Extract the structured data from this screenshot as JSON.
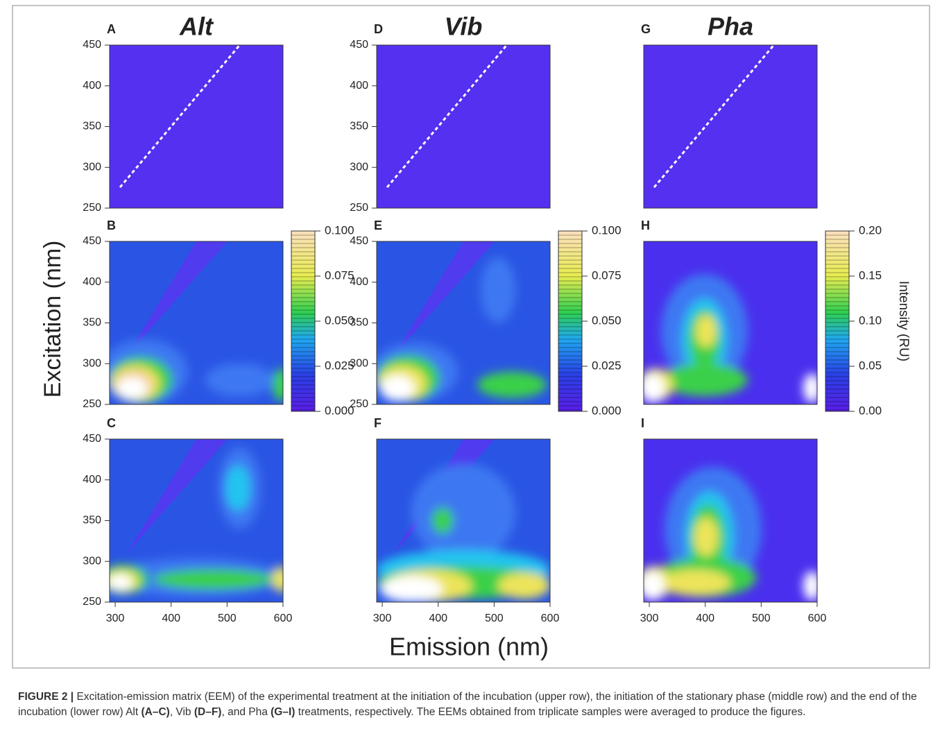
{
  "chart_data": [
    {
      "type": "contour",
      "label": "A",
      "title": "Alt",
      "xlim": [
        290,
        600
      ],
      "ylim": [
        250,
        450
      ],
      "yticks": [
        250,
        300,
        350,
        400,
        450
      ]
    },
    {
      "type": "contour",
      "label": "B",
      "xlim": [
        290,
        600
      ],
      "ylim": [
        250,
        450
      ],
      "yticks": [
        250,
        300,
        350,
        400,
        450
      ],
      "colorbar": {
        "lim": [
          0,
          0.1
        ],
        "ticks": [
          {
            "value": 0,
            "label": "0.000"
          },
          {
            "value": 0.025,
            "label": "0.025"
          },
          {
            "value": 0.05,
            "label": "0.050"
          },
          {
            "value": 0.075,
            "label": "0.075"
          },
          {
            "value": 0.1,
            "label": "0.100"
          }
        ]
      }
    },
    {
      "type": "contour",
      "label": "C",
      "xlim": [
        290,
        600
      ],
      "ylim": [
        250,
        450
      ],
      "yticks": [
        250,
        300,
        350,
        400,
        450
      ],
      "xticks": [
        300,
        400,
        500,
        600
      ]
    },
    {
      "type": "contour",
      "label": "D",
      "title": "Vib",
      "xlim": [
        290,
        600
      ],
      "ylim": [
        250,
        450
      ],
      "yticks": [
        250,
        300,
        350,
        400,
        450
      ]
    },
    {
      "type": "contour",
      "label": "E",
      "xlim": [
        290,
        600
      ],
      "ylim": [
        250,
        450
      ],
      "yticks": [
        250,
        300,
        350,
        400,
        450
      ],
      "colorbar": {
        "lim": [
          0,
          0.1
        ],
        "ticks": [
          {
            "value": 0,
            "label": "0.000"
          },
          {
            "value": 0.025,
            "label": "0.025"
          },
          {
            "value": 0.05,
            "label": "0.050"
          },
          {
            "value": 0.075,
            "label": "0.075"
          },
          {
            "value": 0.1,
            "label": "0.100"
          }
        ]
      }
    },
    {
      "type": "contour",
      "label": "F",
      "xlim": [
        290,
        600
      ],
      "ylim": [
        250,
        450
      ],
      "xticks": [
        300,
        400,
        500,
        600
      ]
    },
    {
      "type": "contour",
      "label": "G",
      "title": "Pha",
      "xlim": [
        290,
        600
      ],
      "ylim": [
        250,
        450
      ]
    },
    {
      "type": "contour",
      "label": "H",
      "xlim": [
        290,
        600
      ],
      "ylim": [
        250,
        450
      ],
      "colorbar": {
        "lim": [
          0,
          0.2
        ],
        "ticks": [
          {
            "value": 0,
            "label": "0.00"
          },
          {
            "value": 0.05,
            "label": "0.05"
          },
          {
            "value": 0.1,
            "label": "0.10"
          },
          {
            "value": 0.15,
            "label": "0.15"
          },
          {
            "value": 0.2,
            "label": "0.20"
          }
        ],
        "label": "Intensity (RU)"
      }
    },
    {
      "type": "contour",
      "label": "I",
      "xlim": [
        290,
        600
      ],
      "ylim": [
        250,
        450
      ],
      "xticks": [
        300,
        400,
        500,
        600
      ]
    }
  ],
  "figure": {
    "ylabel": "Excitation (nm)",
    "xlabel": "Emission (nm)"
  },
  "caption": [
    {
      "text": "FIGURE 2 |",
      "bold": true
    },
    {
      "text": " Excitation-emission matrix (EEM) of the experimental treatment at the initiation of the incubation (upper row), the initiation of the stationary phase (middle row) and the end of the incubation (lower row) Alt "
    },
    {
      "text": "(A–C)",
      "bold": true
    },
    {
      "text": ", Vib "
    },
    {
      "text": "(D–F)",
      "bold": true
    },
    {
      "text": ", and Pha "
    },
    {
      "text": "(G–I)",
      "bold": true
    },
    {
      "text": " treatments, respectively. The EEMs obtained from triplicate samples were averaged to produce the figures."
    }
  ]
}
